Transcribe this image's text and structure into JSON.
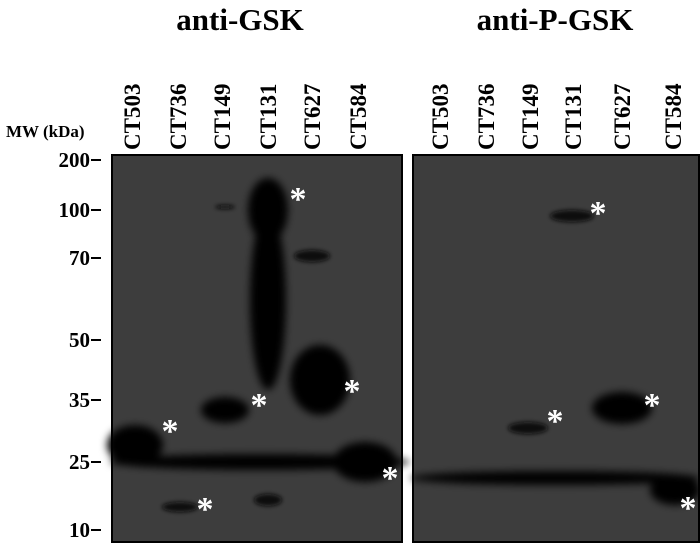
{
  "panels": [
    {
      "title": "anti-GSK",
      "lanes": [
        "CT503",
        "CT736",
        "CT149",
        "CT131",
        "CT627",
        "CT584"
      ],
      "asterisks": [
        "*",
        "*",
        "*",
        "*",
        "*",
        "*"
      ]
    },
    {
      "title": "anti-P-GSK",
      "lanes": [
        "CT503",
        "CT736",
        "CT149",
        "CT131",
        "CT627",
        "CT584"
      ],
      "asterisks": [
        "*",
        "*",
        "*",
        "*"
      ]
    }
  ],
  "mw": {
    "label": "MW (kDa)",
    "markers": [
      "200",
      "100",
      "70",
      "50",
      "35",
      "25",
      "10"
    ]
  }
}
